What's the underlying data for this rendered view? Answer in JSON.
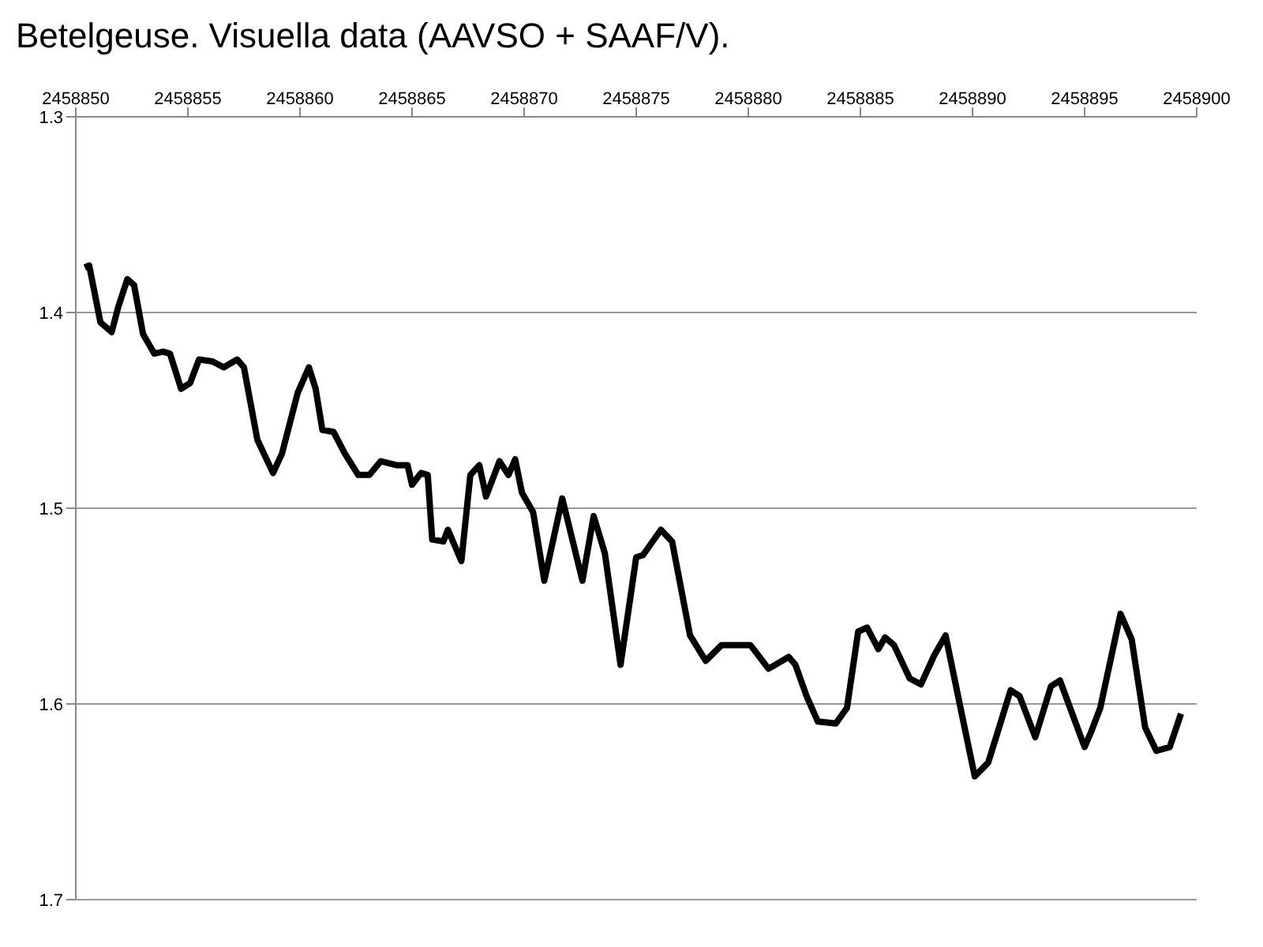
{
  "chart_data": {
    "type": "line",
    "title": "Betelgeuse. Visuella data (AAVSO + SAAF/V).",
    "x": [
      2458850.4,
      2458850.6,
      2458851.1,
      2458851.6,
      2458851.9,
      2458852.3,
      2458852.6,
      2458853.0,
      2458853.5,
      2458853.9,
      2458854.2,
      2458854.7,
      2458855.1,
      2458855.5,
      2458856.1,
      2458856.6,
      2458857.2,
      2458857.5,
      2458858.1,
      2458858.8,
      2458859.2,
      2458859.9,
      2458860.4,
      2458860.7,
      2458861.0,
      2458861.5,
      2458862.0,
      2458862.6,
      2458863.1,
      2458863.6,
      2458864.3,
      2458864.8,
      2458865.0,
      2458865.4,
      2458865.7,
      2458865.9,
      2458866.4,
      2458866.6,
      2458867.2,
      2458867.6,
      2458868.0,
      2458868.3,
      2458868.9,
      2458869.3,
      2458869.6,
      2458869.9,
      2458870.4,
      2458870.9,
      2458871.7,
      2458872.6,
      2458873.1,
      2458873.6,
      2458874.3,
      2458875.0,
      2458875.3,
      2458876.1,
      2458876.6,
      2458877.4,
      2458878.1,
      2458878.8,
      2458879.4,
      2458880.1,
      2458880.9,
      2458881.8,
      2458882.1,
      2458882.6,
      2458883.1,
      2458883.9,
      2458884.4,
      2458884.9,
      2458885.3,
      2458885.8,
      2458886.1,
      2458886.5,
      2458887.2,
      2458887.7,
      2458888.3,
      2458888.8,
      2458889.5,
      2458890.1,
      2458890.7,
      2458891.7,
      2458892.1,
      2458892.8,
      2458893.5,
      2458893.9,
      2458895.0,
      2458895.3,
      2458895.7,
      2458896.6,
      2458897.1,
      2458897.7,
      2458898.2,
      2458898.8,
      2458899.3
    ],
    "series": [
      {
        "color": "#000000",
        "values": [
          1.377,
          1.376,
          1.405,
          1.41,
          1.397,
          1.383,
          1.386,
          1.411,
          1.421,
          1.42,
          1.421,
          1.439,
          1.436,
          1.424,
          1.425,
          1.428,
          1.424,
          1.428,
          1.465,
          1.482,
          1.472,
          1.441,
          1.428,
          1.439,
          1.46,
          1.461,
          1.472,
          1.483,
          1.483,
          1.476,
          1.478,
          1.478,
          1.488,
          1.482,
          1.483,
          1.516,
          1.517,
          1.511,
          1.527,
          1.483,
          1.478,
          1.494,
          1.476,
          1.483,
          1.475,
          1.492,
          1.502,
          1.537,
          1.495,
          1.537,
          1.504,
          1.523,
          1.58,
          1.525,
          1.524,
          1.511,
          1.517,
          1.565,
          1.578,
          1.57,
          1.57,
          1.57,
          1.582,
          1.576,
          1.58,
          1.596,
          1.609,
          1.61,
          1.602,
          1.563,
          1.561,
          1.572,
          1.566,
          1.57,
          1.587,
          1.59,
          1.575,
          1.565,
          1.604,
          1.637,
          1.63,
          1.593,
          1.596,
          1.617,
          1.591,
          1.588,
          1.622,
          1.614,
          1.602,
          1.554,
          1.567,
          1.612,
          1.624,
          1.622,
          1.605
        ]
      }
    ],
    "xlim": [
      2458850,
      2458900
    ],
    "xticks": [
      2458850,
      2458855,
      2458860,
      2458865,
      2458870,
      2458875,
      2458880,
      2458885,
      2458890,
      2458895,
      2458900
    ],
    "ylim": [
      1.7,
      1.3
    ],
    "yticks": [
      1.3,
      1.4,
      1.5,
      1.6,
      1.7
    ],
    "grid": "y",
    "legend": false,
    "marker": "none",
    "line_style": "solid"
  }
}
